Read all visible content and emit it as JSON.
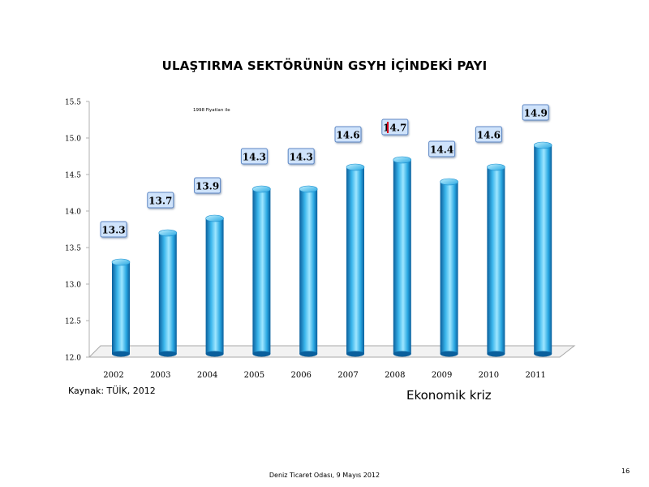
{
  "chart_data": {
    "type": "bar",
    "title": "ULAŞTIRMA SEKTÖRÜNÜN GSYH İÇİNDEKİ PAYI",
    "legend_text": "1998 Fiyatları ile",
    "categories": [
      "2002",
      "2003",
      "2004",
      "2005",
      "2006",
      "2007",
      "2008",
      "2009",
      "2010",
      "2011"
    ],
    "values": [
      13.3,
      13.7,
      13.9,
      14.3,
      14.3,
      14.6,
      14.7,
      14.4,
      14.6,
      14.9
    ],
    "data_labels": [
      "13.3",
      "13.7",
      "13.9",
      "14.3",
      "14.3",
      "14.6",
      "14.7",
      "14.4",
      "14.6",
      "14.9"
    ],
    "ylim": [
      12.0,
      15.5
    ],
    "yticks": [
      "12.0",
      "12.5",
      "13.0",
      "13.5",
      "14.0",
      "14.5",
      "15.0",
      "15.5"
    ],
    "xlabel": "",
    "ylabel": "",
    "grid": false,
    "colors": {
      "bar_light": "#9ee6ff",
      "bar_mid": "#2aa8e2",
      "bar_dark": "#0a5f9c",
      "label_fill": "#cfe3fb",
      "label_stroke": "#5b86c4",
      "marker": "#d6001c"
    }
  },
  "source": "Kaynak: TÜİK, 2012",
  "annotation": "Ekonomik kriz",
  "footer": "Deniz Ticaret Odası, 9 Mayıs 2012",
  "page_number": "16"
}
